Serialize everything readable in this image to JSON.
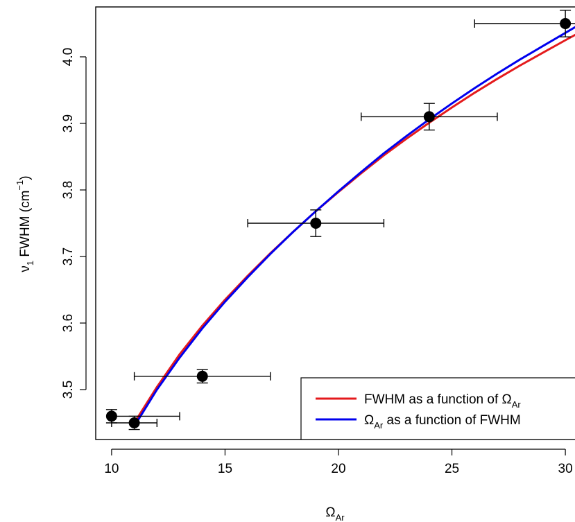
{
  "chart_data": {
    "type": "scatter",
    "xlabel": {
      "main": "Ω",
      "sub": "Ar"
    },
    "ylabel": {
      "pre": "ν",
      "pre_sub": "1",
      "mid": " FWHM (cm",
      "sup": "−1",
      "post": ")"
    },
    "xlim": [
      9.3,
      30.7
    ],
    "ylim": [
      3.425,
      4.075
    ],
    "x_ticks": [
      10,
      15,
      20,
      25,
      30
    ],
    "x_tick_labels": [
      "10",
      "15",
      "20",
      "25",
      "30"
    ],
    "y_ticks": [
      3.5,
      3.6,
      3.7,
      3.8,
      3.9,
      4.0
    ],
    "y_tick_labels": [
      "3.5",
      "3.6",
      "3.7",
      "3.8",
      "3.9",
      "4.0"
    ],
    "grid": false,
    "legend_position": "bottom-right",
    "points": [
      {
        "x": 10,
        "y": 3.46,
        "xerr": [
          10,
          13
        ],
        "yerr": [
          3.45,
          3.47
        ]
      },
      {
        "x": 11,
        "y": 3.45,
        "xerr": [
          10,
          12
        ],
        "yerr": [
          3.44,
          3.46
        ]
      },
      {
        "x": 14,
        "y": 3.52,
        "xerr": [
          11,
          17
        ],
        "yerr": [
          3.51,
          3.53
        ]
      },
      {
        "x": 19,
        "y": 3.75,
        "xerr": [
          16,
          22
        ],
        "yerr": [
          3.73,
          3.77
        ]
      },
      {
        "x": 24,
        "y": 3.91,
        "xerr": [
          21,
          27
        ],
        "yerr": [
          3.89,
          3.93
        ]
      },
      {
        "x": 30,
        "y": 4.05,
        "xerr": [
          26,
          34
        ],
        "yerr": [
          4.03,
          4.07
        ]
      }
    ],
    "series": [
      {
        "name": "FWHM as a function of Ω_Ar",
        "legend": {
          "pre": "FWHM as a function of Ω",
          "sub": "Ar",
          "post": ""
        },
        "color": "#e41a1c",
        "x": [
          11,
          12,
          13,
          14,
          15,
          16,
          17,
          18,
          19,
          20,
          21,
          22,
          23,
          24,
          25,
          26,
          27,
          28,
          29,
          30,
          30.7
        ],
        "y": [
          3.45,
          3.504,
          3.553,
          3.596,
          3.635,
          3.671,
          3.705,
          3.737,
          3.768,
          3.797,
          3.825,
          3.852,
          3.877,
          3.901,
          3.924,
          3.946,
          3.967,
          3.987,
          4.006,
          4.025,
          4.038
        ]
      },
      {
        "name": "Ω_Ar as a function of FWHM",
        "legend": {
          "pre": "Ω",
          "sub": "Ar",
          "post": " as a function of FWHM"
        },
        "color": "#0000ee",
        "x": [
          11,
          12,
          13,
          14,
          15,
          16,
          17,
          18,
          19,
          20,
          21,
          22,
          23,
          24,
          25,
          26,
          27,
          28,
          29,
          30,
          30.7
        ],
        "y": [
          3.445,
          3.5,
          3.548,
          3.592,
          3.632,
          3.669,
          3.704,
          3.737,
          3.768,
          3.798,
          3.827,
          3.855,
          3.881,
          3.906,
          3.93,
          3.953,
          3.975,
          3.996,
          4.016,
          4.036,
          4.05
        ]
      }
    ]
  }
}
